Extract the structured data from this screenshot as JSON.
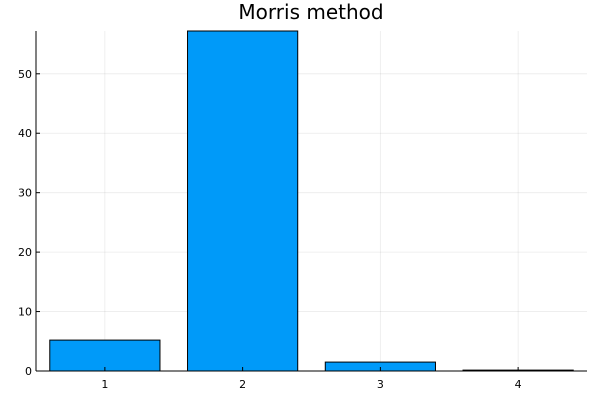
{
  "chart_data": {
    "type": "bar",
    "title": "Morris method",
    "xlabel": "",
    "ylabel": "",
    "categories": [
      "1",
      "2",
      "3",
      "4"
    ],
    "values": [
      5.2,
      57.2,
      1.5,
      0.15
    ],
    "ylim": [
      0,
      57.2
    ],
    "yticks": [
      0,
      10,
      20,
      30,
      40,
      50
    ],
    "grid": true,
    "legend": "none",
    "bar_color": "#009af9",
    "bar_edge_color": "#000000"
  }
}
